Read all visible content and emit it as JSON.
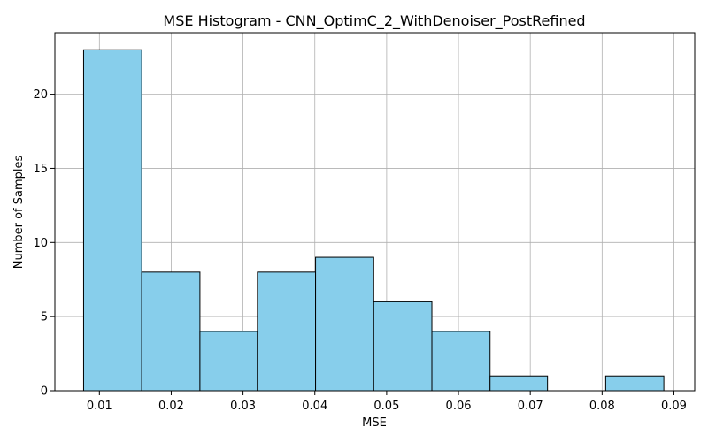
{
  "chart_data": {
    "type": "bar",
    "subtype": "histogram",
    "title": "MSE Histogram - CNN_OptimC_2_WithDenoiser_PostRefined",
    "xlabel": "MSE",
    "ylabel": "Number of Samples",
    "xlim": [
      0.0038,
      0.0929
    ],
    "ylim": [
      0,
      24.15
    ],
    "x_ticks": [
      0.01,
      0.02,
      0.03,
      0.04,
      0.05,
      0.06,
      0.07,
      0.08,
      0.09
    ],
    "x_tick_labels": [
      "0.01",
      "0.02",
      "0.03",
      "0.04",
      "0.05",
      "0.06",
      "0.07",
      "0.08",
      "0.09"
    ],
    "y_ticks": [
      0,
      5,
      10,
      15,
      20
    ],
    "y_tick_labels": [
      "0",
      "5",
      "10",
      "15",
      "20"
    ],
    "bin_edges": [
      0.0078,
      0.0159,
      0.024,
      0.032,
      0.0401,
      0.0482,
      0.0563,
      0.0644,
      0.0724,
      0.0805,
      0.0886
    ],
    "values": [
      23,
      8,
      4,
      8,
      9,
      6,
      4,
      1,
      0,
      1
    ],
    "grid": true,
    "colors": {
      "bar_fill": "#87CEEB",
      "bar_edge": "#000000",
      "grid": "#b0b0b0"
    }
  }
}
